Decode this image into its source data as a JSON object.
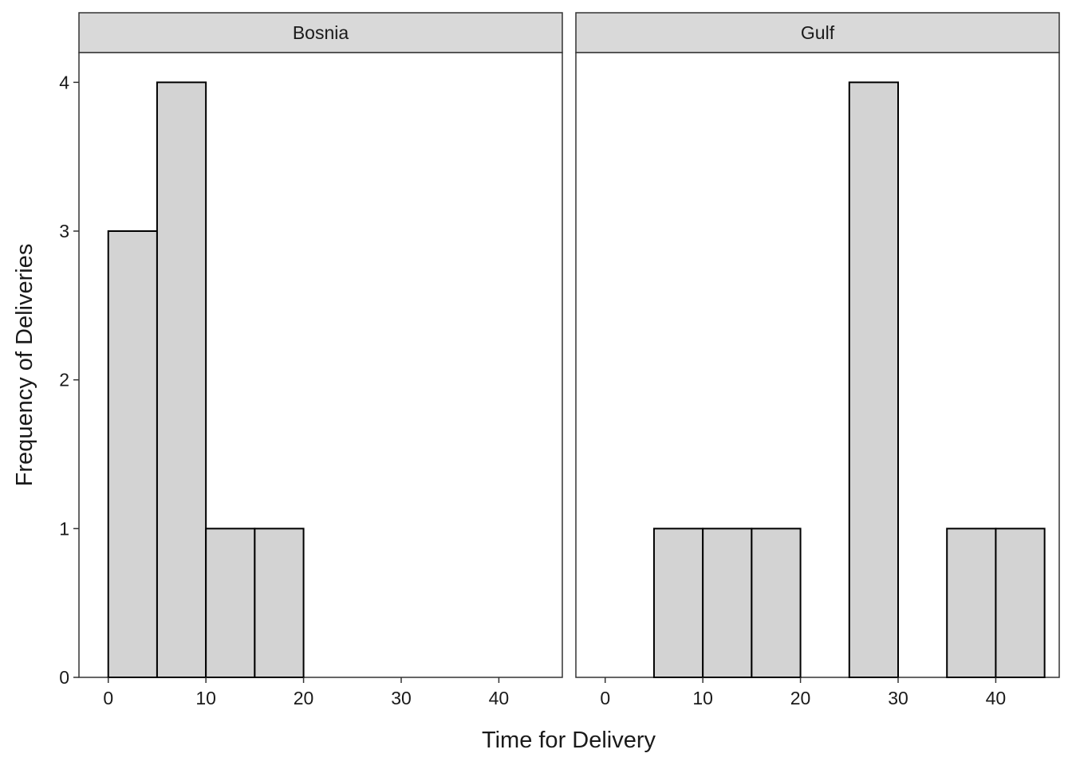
{
  "chart_data": {
    "type": "histogram",
    "xlabel": "Time for Delivery",
    "ylabel": "Frequency of Deliveries",
    "xlim": [
      -3,
      46.5
    ],
    "ylim": [
      0,
      4.2
    ],
    "x_ticks": [
      0,
      10,
      20,
      30,
      40
    ],
    "y_ticks": [
      0,
      1,
      2,
      3,
      4
    ],
    "bin_width": 5,
    "colors": {
      "bar_fill": "#d3d3d3",
      "bar_stroke": "#000000",
      "strip_fill": "#d9d9d9",
      "panel_border": "#333333"
    },
    "panels": [
      {
        "name": "Bosnia",
        "bins": [
          {
            "x0": 0,
            "x1": 5,
            "count": 3
          },
          {
            "x0": 5,
            "x1": 10,
            "count": 4
          },
          {
            "x0": 10,
            "x1": 15,
            "count": 1
          },
          {
            "x0": 15,
            "x1": 20,
            "count": 1
          },
          {
            "x0": 20,
            "x1": 25,
            "count": 0
          },
          {
            "x0": 25,
            "x1": 30,
            "count": 0
          },
          {
            "x0": 30,
            "x1": 35,
            "count": 0
          },
          {
            "x0": 35,
            "x1": 40,
            "count": 0
          },
          {
            "x0": 40,
            "x1": 45,
            "count": 0
          }
        ]
      },
      {
        "name": "Gulf",
        "bins": [
          {
            "x0": 0,
            "x1": 5,
            "count": 0
          },
          {
            "x0": 5,
            "x1": 10,
            "count": 1
          },
          {
            "x0": 10,
            "x1": 15,
            "count": 1
          },
          {
            "x0": 15,
            "x1": 20,
            "count": 1
          },
          {
            "x0": 20,
            "x1": 25,
            "count": 0
          },
          {
            "x0": 25,
            "x1": 30,
            "count": 4
          },
          {
            "x0": 30,
            "x1": 35,
            "count": 0
          },
          {
            "x0": 35,
            "x1": 40,
            "count": 1
          },
          {
            "x0": 40,
            "x1": 45,
            "count": 1
          }
        ]
      }
    ]
  }
}
